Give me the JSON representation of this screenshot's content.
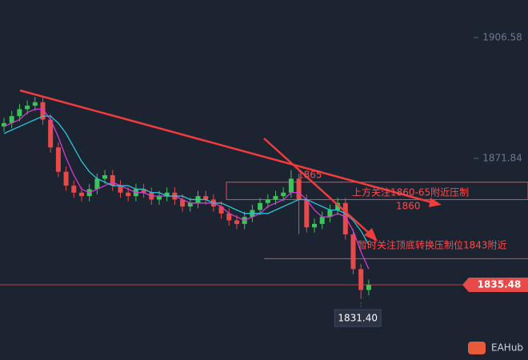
{
  "chart_data": {
    "type": "candlestick",
    "open": [
      1881,
      1882,
      1884,
      1886,
      1887,
      1888,
      1883,
      1875,
      1868,
      1864,
      1862,
      1861,
      1863,
      1866,
      1867,
      1864,
      1862,
      1861,
      1863,
      1862,
      1860,
      1861,
      1862,
      1860,
      1858,
      1859,
      1861,
      1860,
      1858,
      1856,
      1854,
      1853,
      1855,
      1857,
      1859,
      1860,
      1861,
      1862,
      1866,
      1860,
      1852,
      1853,
      1855,
      1857,
      1859,
      1850,
      1840,
      1834
    ],
    "high": [
      1883.5,
      1885.5,
      1887.5,
      1888.5,
      1889.5,
      1889.5,
      1884.5,
      1876.5,
      1869.5,
      1865.5,
      1863.5,
      1864.5,
      1867.5,
      1868.5,
      1868.5,
      1865.5,
      1863.5,
      1864.5,
      1864.5,
      1863.5,
      1862.5,
      1863.5,
      1863.5,
      1861.5,
      1860.5,
      1862.5,
      1862.5,
      1861.5,
      1859.5,
      1857.5,
      1855.5,
      1856.5,
      1858.5,
      1860.5,
      1861.5,
      1862.5,
      1863.5,
      1868.5,
      1867.5,
      1861.5,
      1854.5,
      1856.5,
      1858.5,
      1860.5,
      1860.5,
      1851.5,
      1841.5,
      1837
    ],
    "low": [
      1879.5,
      1880.5,
      1882.5,
      1884.5,
      1885.5,
      1881.5,
      1873.5,
      1866.5,
      1862.5,
      1860.5,
      1859.5,
      1859.5,
      1861.5,
      1864.5,
      1862.5,
      1860.5,
      1859.5,
      1859.5,
      1860.5,
      1858.5,
      1858.5,
      1859.5,
      1858.5,
      1856.5,
      1856.5,
      1857.5,
      1858.5,
      1856.5,
      1854.5,
      1852.5,
      1851.5,
      1851.5,
      1853.5,
      1855.5,
      1857.5,
      1858.5,
      1859.5,
      1860.5,
      1850,
      1850.5,
      1850.5,
      1851.5,
      1853.5,
      1855.5,
      1848.5,
      1838.5,
      1831.4,
      1832.5
    ],
    "close": [
      1882,
      1884,
      1886,
      1887,
      1888,
      1883,
      1875,
      1868,
      1864,
      1862,
      1861,
      1863,
      1866,
      1867,
      1864,
      1862,
      1861,
      1863,
      1862,
      1860,
      1861,
      1862,
      1860,
      1858,
      1859,
      1861,
      1860,
      1858,
      1856,
      1854,
      1853,
      1855,
      1857,
      1859,
      1860,
      1861,
      1862,
      1866,
      1860,
      1852,
      1853,
      1855,
      1857,
      1859,
      1850,
      1840,
      1834,
      1835.48
    ],
    "up_color": "#3cc45a",
    "down_color": "#e84a4a",
    "series": [
      {
        "color": "#d63ad6",
        "values": [
          1881,
          1882,
          1883,
          1885,
          1886,
          1886,
          1883,
          1878,
          1872,
          1867,
          1863,
          1862,
          1863,
          1864,
          1865,
          1864,
          1863,
          1862,
          1862,
          1861,
          1861,
          1861,
          1861,
          1860,
          1859,
          1859,
          1859,
          1859,
          1858,
          1856,
          1855,
          1854,
          1855,
          1856,
          1858,
          1859,
          1860,
          1862,
          1862,
          1860,
          1857,
          1855,
          1855,
          1856,
          1855,
          1851,
          1845,
          1840
        ]
      },
      {
        "color": "#2bc4d8",
        "values": [
          1879,
          1880,
          1881,
          1882,
          1883,
          1884,
          1884,
          1882,
          1879,
          1875,
          1871,
          1868,
          1866,
          1865,
          1864,
          1864,
          1864,
          1863,
          1863,
          1862,
          1862,
          1861,
          1861,
          1861,
          1860,
          1860,
          1860,
          1859,
          1859,
          1858,
          1857,
          1856,
          1856,
          1856,
          1856,
          1857,
          1858,
          1859,
          1860,
          1860,
          1859,
          1858,
          1857,
          1857,
          1856,
          1854,
          1851,
          1847
        ]
      }
    ],
    "ylim": [
      1813.85,
      1917.4
    ],
    "yticks": [
      1906.58,
      1871.84
    ],
    "last_price": 1835.48,
    "low_label": 1831.4,
    "low_label_text": "1831.40",
    "zones": [
      {
        "from": 1860,
        "to": 1865
      }
    ],
    "levels": [
      1843
    ],
    "annotations": [
      "1865",
      "上方关注1860-65附近压制",
      "1860",
      "暂时关注顶底转换压制位1843附近"
    ],
    "brand": "EAHub"
  }
}
